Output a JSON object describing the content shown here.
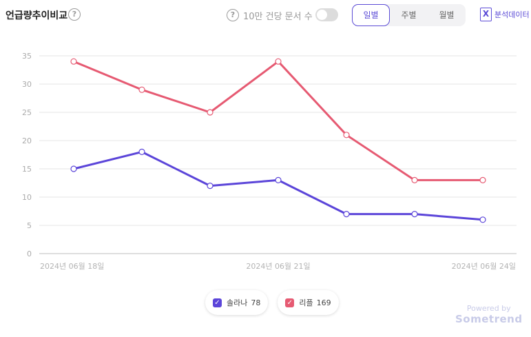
{
  "header": {
    "title": "언급량추이비교",
    "help_glyph": "?",
    "normalize_label": "10만 건당 문서 수",
    "normalize_on": false,
    "periods": [
      "일별",
      "주별",
      "월별"
    ],
    "active_period": "일별",
    "export_label": "분석데이터",
    "export_glyph": "X"
  },
  "colors": {
    "accent": "#5b4bd6",
    "series_1": "#5b45d9",
    "series_2": "#e65a72"
  },
  "chart_data": {
    "type": "line",
    "x": [
      "2024-06-18",
      "2024-06-19",
      "2024-06-20",
      "2024-06-21",
      "2024-06-22",
      "2024-06-23",
      "2024-06-24"
    ],
    "x_tick_labels": [
      "2024년 06월 18일",
      "2024년 06월 21일",
      "2024년 06월 24일"
    ],
    "x_tick_index": [
      0,
      3,
      6
    ],
    "ylim": [
      0,
      35
    ],
    "y_ticks": [
      0,
      5,
      10,
      15,
      20,
      25,
      30,
      35
    ],
    "grid": true,
    "series": [
      {
        "name": "솔라나",
        "total": 78,
        "color": "#5b45d9",
        "values": [
          15,
          18,
          12,
          13,
          7,
          7,
          6
        ]
      },
      {
        "name": "리플",
        "total": 169,
        "color": "#e65a72",
        "values": [
          34,
          29,
          25,
          34,
          21,
          13,
          13
        ]
      }
    ]
  },
  "footer": {
    "powered_by": "Powered by",
    "brand": "Sometrend"
  }
}
